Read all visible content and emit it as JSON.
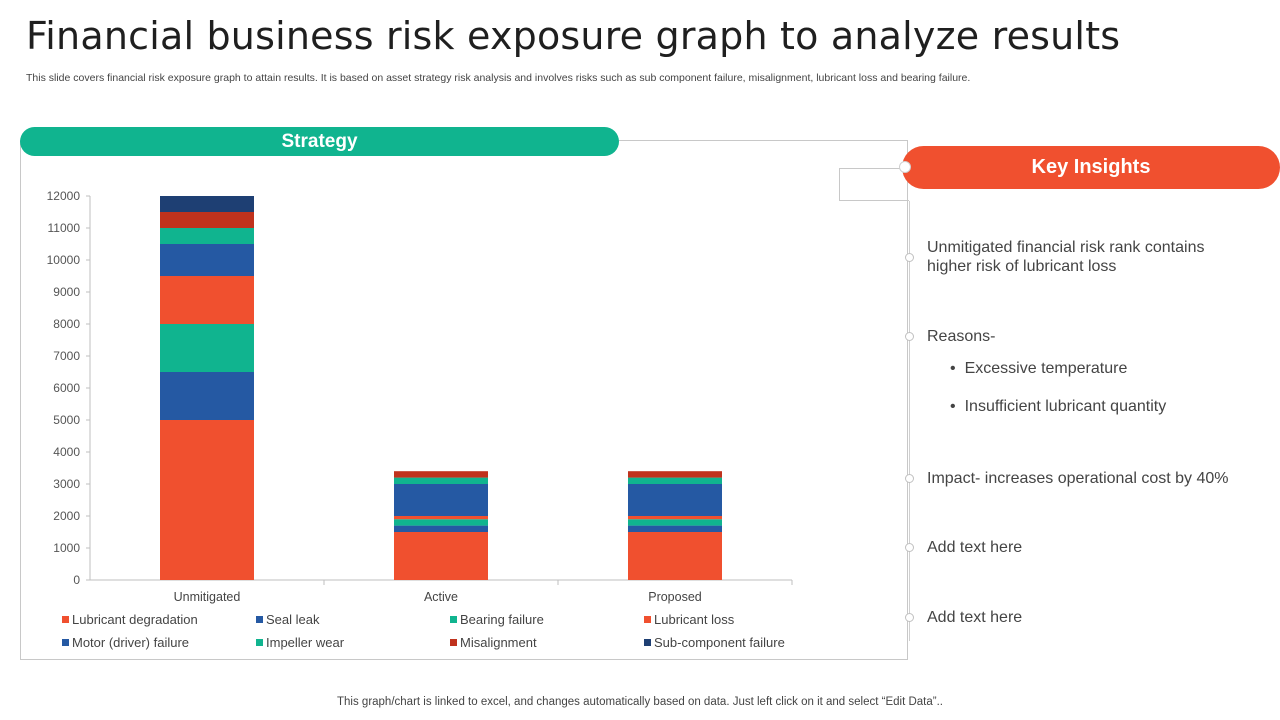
{
  "header": {
    "title": "Financial business risk exposure graph to analyze results",
    "subtitle": "This slide covers financial risk exposure graph to attain results. It is based on asset strategy risk analysis and involves risks such as sub component failure, misalignment, lubricant loss and bearing failure."
  },
  "strategy_label": "Strategy",
  "key_insights": {
    "title": "Key Insights",
    "item1": "Unmitigated financial risk rank contains higher risk of lubricant loss",
    "item2": "Reasons-",
    "bullet1": "Excessive temperature",
    "bullet2": "Insufficient  lubricant quantity",
    "item3": "Impact- increases operational cost by 40%",
    "item4": "Add text here",
    "item5": "Add text here"
  },
  "footer": "This graph/chart is linked to excel,  and changes automatically based on data. Just left click on it and select “Edit Data”..",
  "colors": {
    "green": "#10b48f",
    "red_orange": "#f0502f",
    "blue": "#2559a3",
    "navy": "#1e3f73",
    "dark_red": "#c0321d"
  },
  "chart_data": {
    "type": "bar",
    "stacked": true,
    "categories": [
      "Unmitigated",
      "Active",
      "Proposed"
    ],
    "ylim": [
      0,
      12000
    ],
    "yticks": [
      0,
      1000,
      2000,
      3000,
      4000,
      5000,
      6000,
      7000,
      8000,
      9000,
      10000,
      11000,
      12000
    ],
    "legend_position": "bottom",
    "series": [
      {
        "name": "Lubricant degradation",
        "color": "#f0502f",
        "values": [
          5000,
          1500,
          1500
        ]
      },
      {
        "name": "Motor (driver) failure",
        "color": "#2559a3",
        "values": [
          1500,
          200,
          200
        ]
      },
      {
        "name": "Seal leak",
        "color": "#2559a3",
        "values": [
          0,
          0,
          0
        ]
      },
      {
        "name": "Impeller wear",
        "color": "#10b48f",
        "values": [
          1500,
          200,
          200
        ]
      },
      {
        "name": "Bearing failure",
        "color": "#10b48f",
        "values": [
          0,
          0,
          0
        ]
      },
      {
        "name": "Lubricant loss",
        "color": "#f0502f",
        "values": [
          1500,
          100,
          100
        ]
      },
      {
        "name": "Misalignment",
        "color": "#c0321d",
        "values": [
          0,
          0,
          0
        ]
      },
      {
        "name": "Seal leak",
        "color": "#2559a3",
        "values": [
          1000,
          1000,
          1000
        ]
      },
      {
        "name": "Bearing failure",
        "color": "#10b48f",
        "values": [
          500,
          200,
          200
        ]
      },
      {
        "name": "Misalignment",
        "color": "#c0321d",
        "values": [
          500,
          200,
          200
        ]
      },
      {
        "name": "Sub-component failure",
        "color": "#1e3f73",
        "values": [
          500,
          0,
          0
        ]
      }
    ],
    "legend": [
      {
        "name": "Lubricant degradation",
        "color": "#f0502f"
      },
      {
        "name": "Seal leak",
        "color": "#2559a3"
      },
      {
        "name": "Bearing failure",
        "color": "#10b48f"
      },
      {
        "name": "Lubricant loss",
        "color": "#f0502f"
      },
      {
        "name": "Motor (driver) failure",
        "color": "#2559a3"
      },
      {
        "name": "Impeller wear",
        "color": "#10b48f"
      },
      {
        "name": "Misalignment",
        "color": "#c0321d"
      },
      {
        "name": "Sub-component failure",
        "color": "#1e3f73"
      }
    ]
  }
}
